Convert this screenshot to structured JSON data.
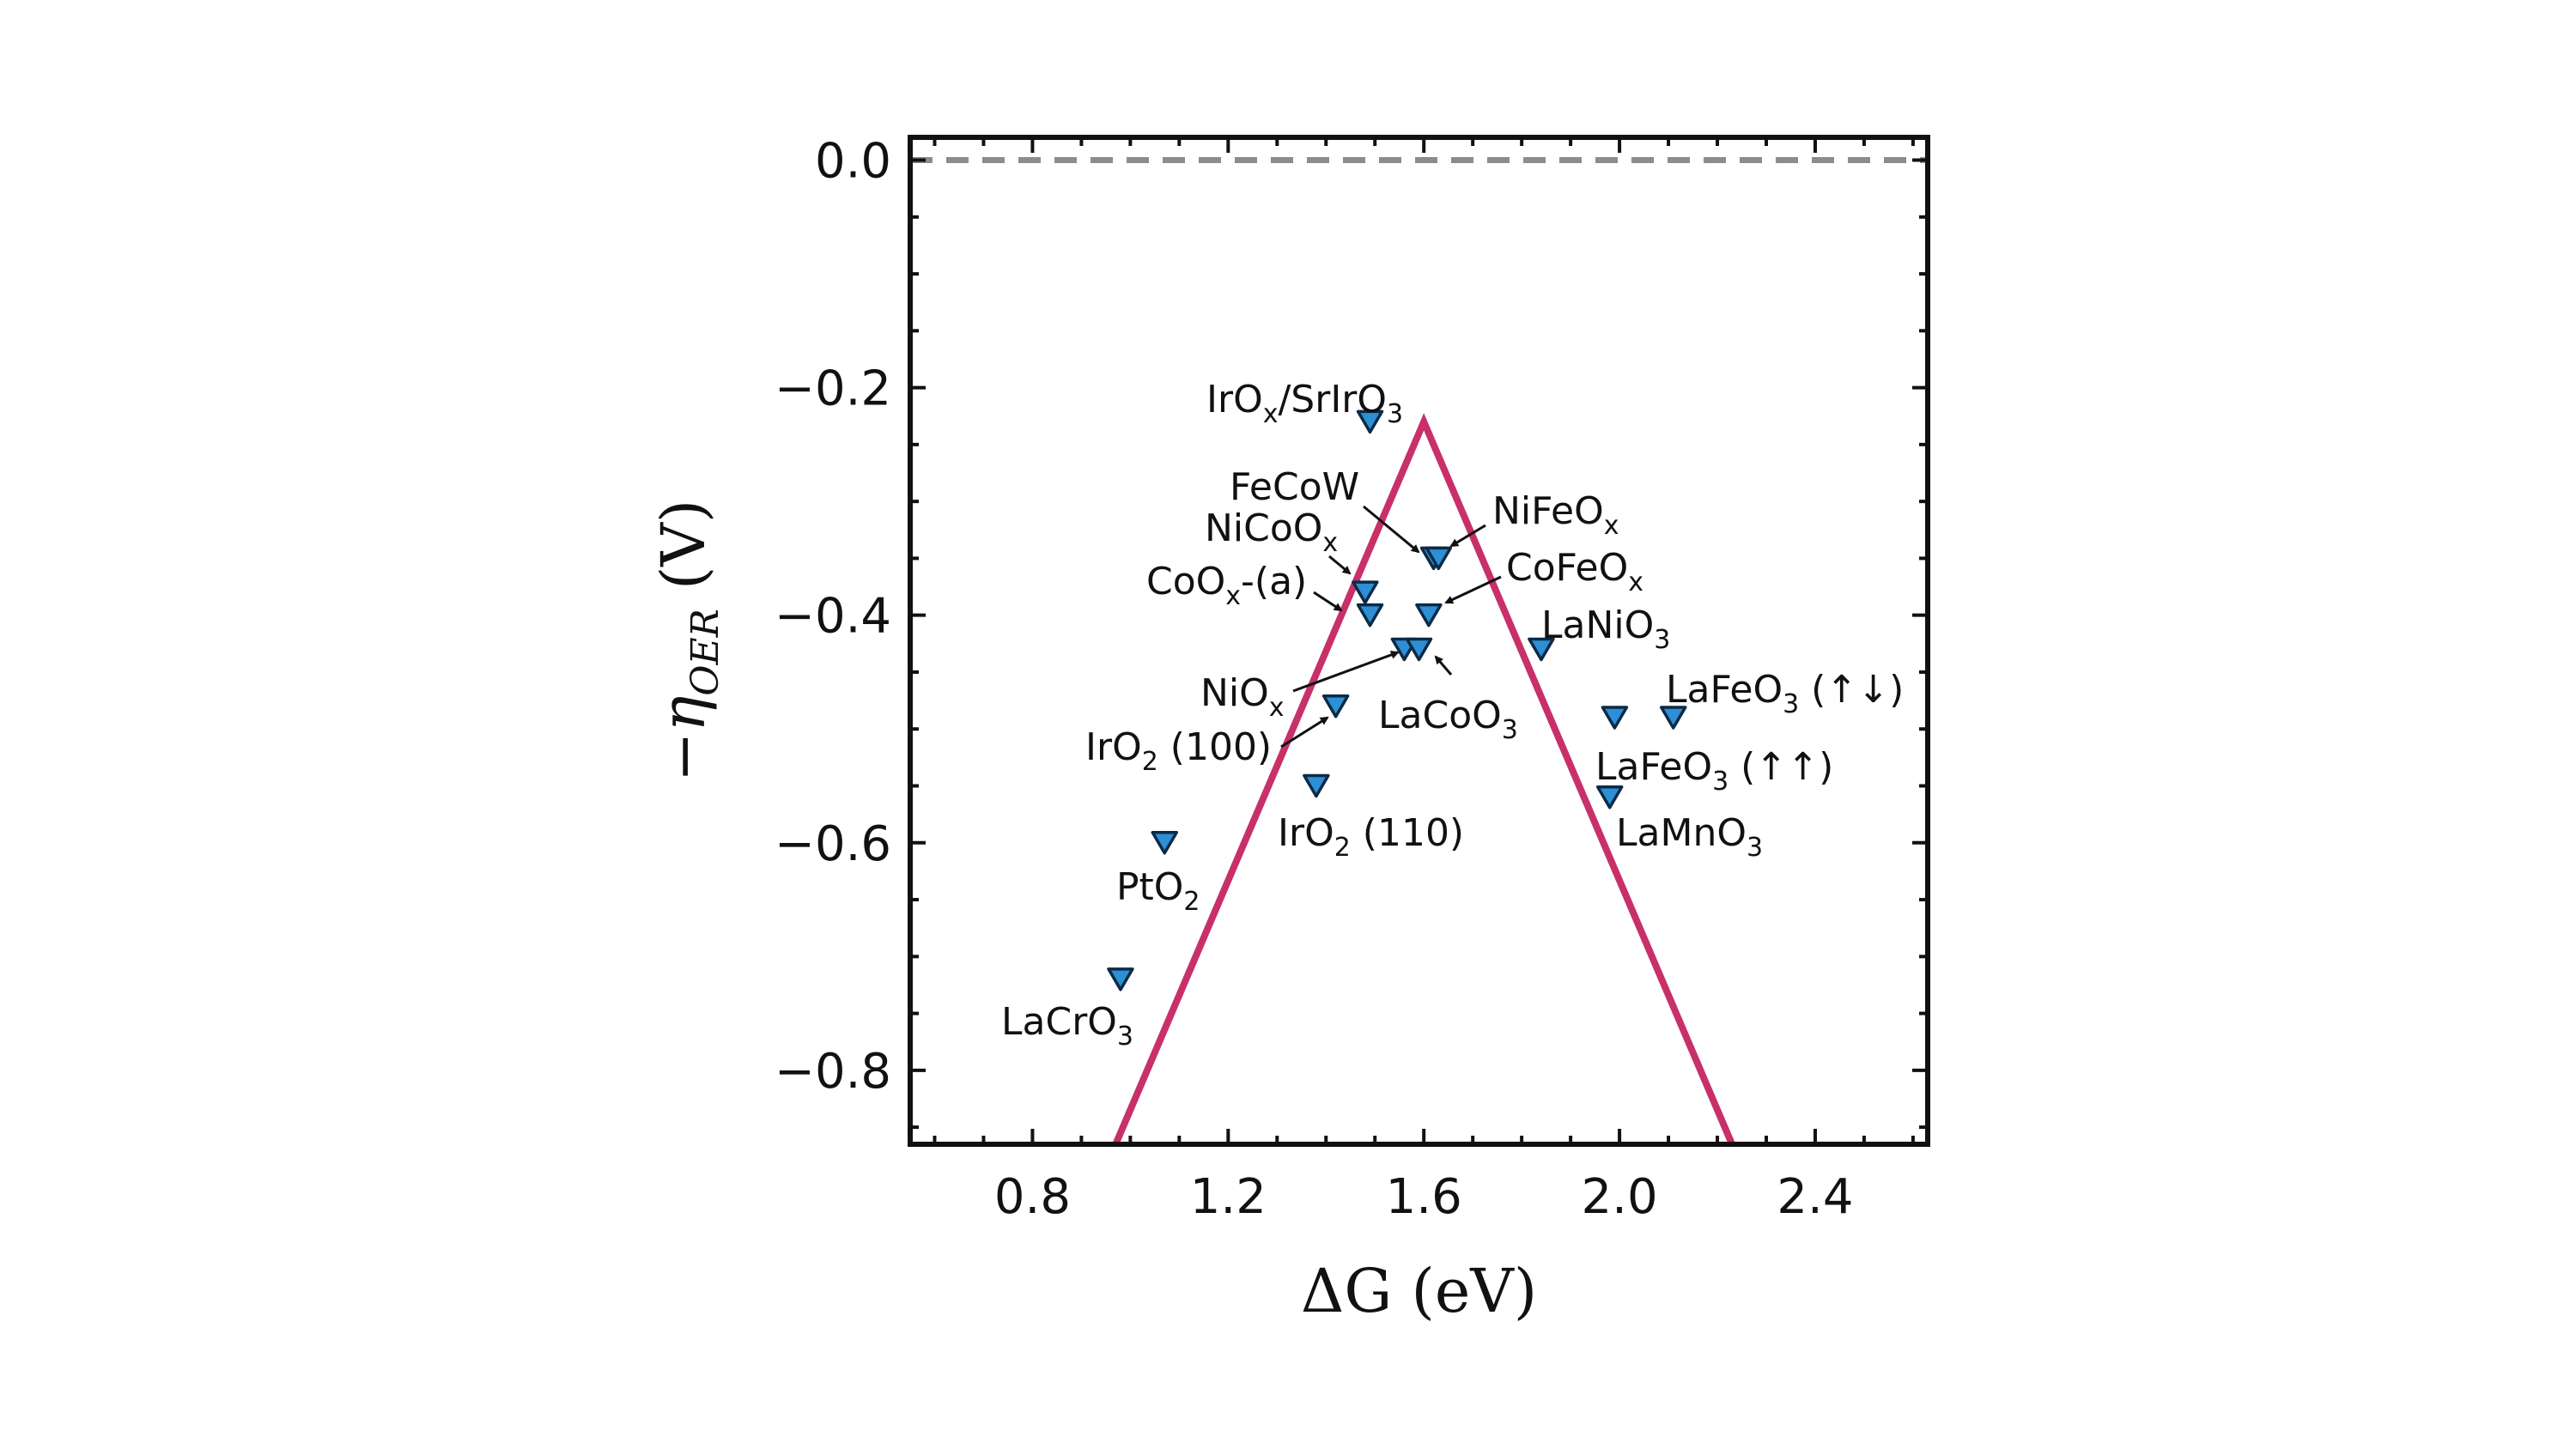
{
  "chart_data": {
    "type": "scatter",
    "xlabel": "ΔG (eV)",
    "ylabel_main": "−η",
    "ylabel_sub": "OER",
    "ylabel_tail": " (V)",
    "xlim": [
      0.55,
      2.63
    ],
    "ylim": [
      -0.865,
      0.02
    ],
    "x_ticks": [
      0.8,
      1.2,
      1.6,
      2.0,
      2.4
    ],
    "x_tick_labels": [
      "0.8",
      "1.2",
      "1.6",
      "2.0",
      "2.4"
    ],
    "y_ticks": [
      0.0,
      -0.2,
      -0.4,
      -0.6,
      -0.8
    ],
    "y_tick_labels": [
      "0.0",
      "−0.2",
      "−0.4",
      "−0.6",
      "−0.8"
    ],
    "reference_line": {
      "y": 0.0,
      "style": "dashed",
      "color": "#8c8c8c"
    },
    "volcano": {
      "color": "#c8306a",
      "points": [
        [
          0.97,
          -0.865
        ],
        [
          1.6,
          -0.23
        ],
        [
          2.23,
          -0.865
        ]
      ]
    },
    "marker": {
      "shape": "triangle-down",
      "fill": "#2d8fd6",
      "stroke": "#0d2a45"
    },
    "points": [
      {
        "label": "IrOx/SrIrO3",
        "x": 1.49,
        "y": -0.23
      },
      {
        "label": "FeCoW",
        "x": 1.62,
        "y": -0.35
      },
      {
        "label": "NiFeOx",
        "x": 1.63,
        "y": -0.35
      },
      {
        "label": "NiCoOx",
        "x": 1.48,
        "y": -0.38
      },
      {
        "label": "CoOx-(a)",
        "x": 1.49,
        "y": -0.4
      },
      {
        "label": "CoFeOx",
        "x": 1.61,
        "y": -0.4
      },
      {
        "label": "NiOx",
        "x": 1.56,
        "y": -0.43
      },
      {
        "label": "LaCoO3",
        "x": 1.59,
        "y": -0.43
      },
      {
        "label": "LaNiO3",
        "x": 1.84,
        "y": -0.43
      },
      {
        "label": "IrO2 (100)",
        "x": 1.42,
        "y": -0.48
      },
      {
        "label": "LaFeO3 (↑↓)",
        "x": 2.11,
        "y": -0.49
      },
      {
        "label": "LaFeO3 (↑↑)",
        "x": 1.99,
        "y": -0.49
      },
      {
        "label": "IrO2 (110)",
        "x": 1.38,
        "y": -0.55
      },
      {
        "label": "LaMnO3",
        "x": 1.98,
        "y": -0.56
      },
      {
        "label": "PtO2",
        "x": 1.07,
        "y": -0.6
      },
      {
        "label": "LaCrO3",
        "x": 0.98,
        "y": -0.72
      }
    ]
  }
}
